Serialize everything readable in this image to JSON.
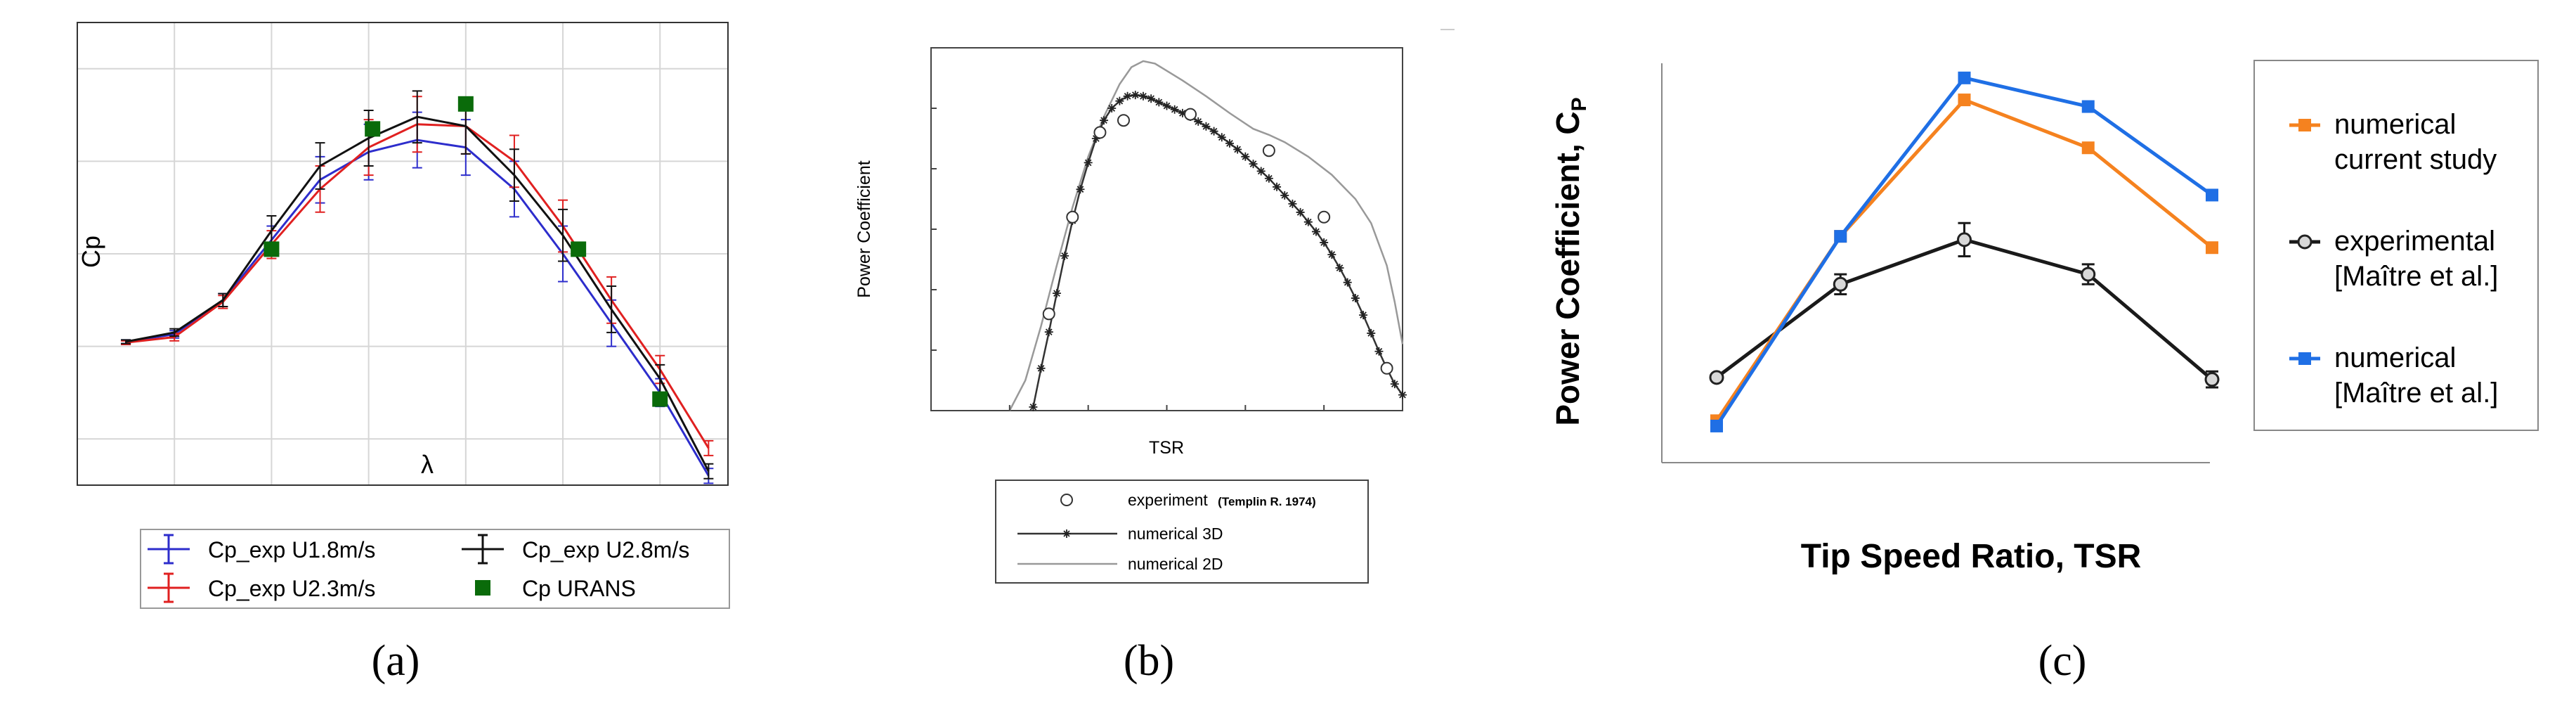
{
  "figure": {
    "caption_a": "(a)",
    "caption_b": "(b)",
    "caption_c": "(c)"
  },
  "chart_data": [
    {
      "id": "a",
      "type": "line",
      "title": "",
      "xlabel": "λ",
      "ylabel": "Cp",
      "xlim": [
        0.0,
        3.35
      ],
      "ylim": [
        -0.15,
        0.35
      ],
      "xticks": [
        "0.0",
        "0.5",
        "1.0",
        "1.5",
        "2.0",
        "2.5",
        "3.0"
      ],
      "yticks": [
        "−0.1",
        "0.0",
        "0.1",
        "0.2",
        "0.3"
      ],
      "grid": true,
      "legend_position": "bottom-outside",
      "series": [
        {
          "name": "Cp_exp U1.8m/s",
          "color": "#2d2dcc",
          "kind": "line-errorbar",
          "x": [
            0.25,
            0.5,
            0.75,
            1.0,
            1.25,
            1.5,
            1.75,
            2.0,
            2.25,
            2.5,
            2.75,
            3.0,
            3.25
          ],
          "y": [
            0.005,
            0.013,
            0.05,
            0.115,
            0.18,
            0.21,
            0.223,
            0.215,
            0.17,
            0.1,
            0.025,
            -0.05,
            -0.14
          ],
          "err": [
            0.002,
            0.004,
            0.007,
            0.015,
            0.025,
            0.03,
            0.03,
            0.03,
            0.03,
            0.03,
            0.025,
            0.015,
            0.008
          ]
        },
        {
          "name": "Cp_exp U2.3m/s",
          "color": "#e02020",
          "kind": "line-errorbar",
          "x": [
            0.25,
            0.5,
            0.75,
            1.0,
            1.25,
            1.5,
            1.75,
            2.0,
            2.25,
            2.5,
            2.75,
            3.0,
            3.25
          ],
          "y": [
            0.004,
            0.01,
            0.048,
            0.11,
            0.17,
            0.215,
            0.24,
            0.238,
            0.2,
            0.13,
            0.05,
            -0.025,
            -0.11
          ],
          "err": [
            0.002,
            0.004,
            0.007,
            0.015,
            0.025,
            0.03,
            0.03,
            0.03,
            0.028,
            0.028,
            0.025,
            0.015,
            0.008
          ]
        },
        {
          "name": "Cp_exp U2.8m/s",
          "color": "#111111",
          "kind": "line-errorbar",
          "x": [
            0.25,
            0.5,
            0.75,
            1.0,
            1.25,
            1.5,
            1.75,
            2.0,
            2.25,
            2.5,
            2.75,
            3.0,
            3.25
          ],
          "y": [
            0.005,
            0.015,
            0.05,
            0.125,
            0.195,
            0.225,
            0.248,
            0.238,
            0.185,
            0.12,
            0.04,
            -0.035,
            -0.135
          ],
          "err": [
            0.002,
            0.004,
            0.007,
            0.016,
            0.025,
            0.03,
            0.028,
            0.03,
            0.028,
            0.028,
            0.025,
            0.015,
            0.008
          ]
        },
        {
          "name": "Cp URANS",
          "color": "#0a6b0a",
          "kind": "square-markers",
          "x": [
            1.0,
            1.52,
            2.0,
            2.58,
            3.0
          ],
          "y": [
            0.105,
            0.235,
            0.262,
            0.105,
            -0.057
          ]
        }
      ]
    },
    {
      "id": "b",
      "type": "line",
      "title": "",
      "xlabel": "TSR",
      "ylabel": "Power Coefficient",
      "xlim": [
        3,
        9
      ],
      "ylim": [
        0.15,
        0.45
      ],
      "xticks": [
        "3",
        "4",
        "5",
        "6",
        "7",
        "8",
        "9"
      ],
      "yticks": [
        "0.15",
        "0.2",
        "0.25",
        "0.3",
        "0.35",
        "0.4",
        "0.45"
      ],
      "grid": false,
      "legend_position": "bottom-outside",
      "series": [
        {
          "name": "experiment",
          "name_note": "(Templin R. 1974)",
          "color": "#333333",
          "kind": "open-circles",
          "x": [
            4.5,
            4.8,
            5.15,
            5.45,
            6.3,
            7.3,
            8.0,
            8.8
          ],
          "y": [
            0.23,
            0.31,
            0.38,
            0.39,
            0.395,
            0.365,
            0.31,
            0.185
          ]
        },
        {
          "name": "numerical 3D",
          "color": "#333333",
          "kind": "star-line",
          "x": [
            4.3,
            4.4,
            4.5,
            4.6,
            4.7,
            4.8,
            4.9,
            5.0,
            5.1,
            5.2,
            5.3,
            5.4,
            5.5,
            5.6,
            5.7,
            5.8,
            5.9,
            6.0,
            6.1,
            6.2,
            6.3,
            6.4,
            6.5,
            6.6,
            6.7,
            6.8,
            6.9,
            7.0,
            7.1,
            7.2,
            7.3,
            7.4,
            7.5,
            7.6,
            7.7,
            7.8,
            7.9,
            8.0,
            8.1,
            8.2,
            8.3,
            8.4,
            8.5,
            8.6,
            8.7,
            8.8,
            8.9,
            9.0
          ],
          "y": [
            0.153,
            0.185,
            0.215,
            0.247,
            0.278,
            0.307,
            0.333,
            0.355,
            0.375,
            0.39,
            0.4,
            0.406,
            0.41,
            0.411,
            0.41,
            0.408,
            0.405,
            0.402,
            0.399,
            0.396,
            0.393,
            0.389,
            0.385,
            0.381,
            0.376,
            0.371,
            0.366,
            0.36,
            0.354,
            0.348,
            0.342,
            0.335,
            0.328,
            0.321,
            0.314,
            0.306,
            0.298,
            0.289,
            0.279,
            0.268,
            0.256,
            0.243,
            0.229,
            0.214,
            0.199,
            0.185,
            0.172,
            0.163
          ]
        },
        {
          "name": "numerical 2D",
          "color": "#999999",
          "kind": "line",
          "x": [
            4.0,
            4.2,
            4.4,
            4.6,
            4.8,
            5.0,
            5.2,
            5.4,
            5.55,
            5.7,
            5.85,
            6.0,
            6.2,
            6.5,
            6.8,
            7.1,
            7.3,
            7.5,
            7.8,
            8.1,
            8.4,
            8.6,
            8.8,
            8.9,
            9.0
          ],
          "y": [
            0.15,
            0.175,
            0.22,
            0.27,
            0.318,
            0.36,
            0.393,
            0.42,
            0.434,
            0.439,
            0.437,
            0.431,
            0.423,
            0.41,
            0.396,
            0.383,
            0.378,
            0.372,
            0.36,
            0.345,
            0.325,
            0.305,
            0.27,
            0.24,
            0.205
          ]
        }
      ]
    },
    {
      "id": "c",
      "type": "line",
      "title": "",
      "xlabel": "Tip Speed Ratio, TSR",
      "ylabel": "Power Coefficient, C",
      "ylabel_sub": "P",
      "xlim": [
        1.0,
        3.0
      ],
      "ylim": [
        0.0,
        0.6
      ],
      "xticks": [
        "1.0",
        "1.5",
        "2.0",
        "2.5",
        "3.0"
      ],
      "yticks": [
        "0.00",
        "0.10",
        "0.20",
        "0.30",
        "0.40",
        "0.50",
        "0.60"
      ],
      "grid": false,
      "legend_position": "right-outside",
      "series": [
        {
          "name_lines": [
            "numerical",
            "current study"
          ],
          "color": "#f5821f",
          "kind": "square-line",
          "x": [
            1.0,
            1.5,
            2.0,
            2.5,
            3.0
          ],
          "y": [
            0.063,
            0.34,
            0.545,
            0.473,
            0.323
          ]
        },
        {
          "name_lines": [
            "experimental",
            "[Maître et al.]"
          ],
          "color": "#1a1a1a",
          "kind": "circle-line-errorbar",
          "x": [
            1.0,
            1.5,
            2.0,
            2.5,
            3.0
          ],
          "y": [
            0.128,
            0.268,
            0.335,
            0.283,
            0.125
          ],
          "err": [
            0.0,
            0.015,
            0.025,
            0.015,
            0.012
          ]
        },
        {
          "name_lines": [
            "numerical",
            "[Maître et al.]"
          ],
          "color": "#1f6fe5",
          "kind": "square-line",
          "x": [
            1.0,
            1.5,
            2.0,
            2.5,
            3.0
          ],
          "y": [
            0.055,
            0.34,
            0.578,
            0.535,
            0.402
          ]
        }
      ]
    }
  ]
}
